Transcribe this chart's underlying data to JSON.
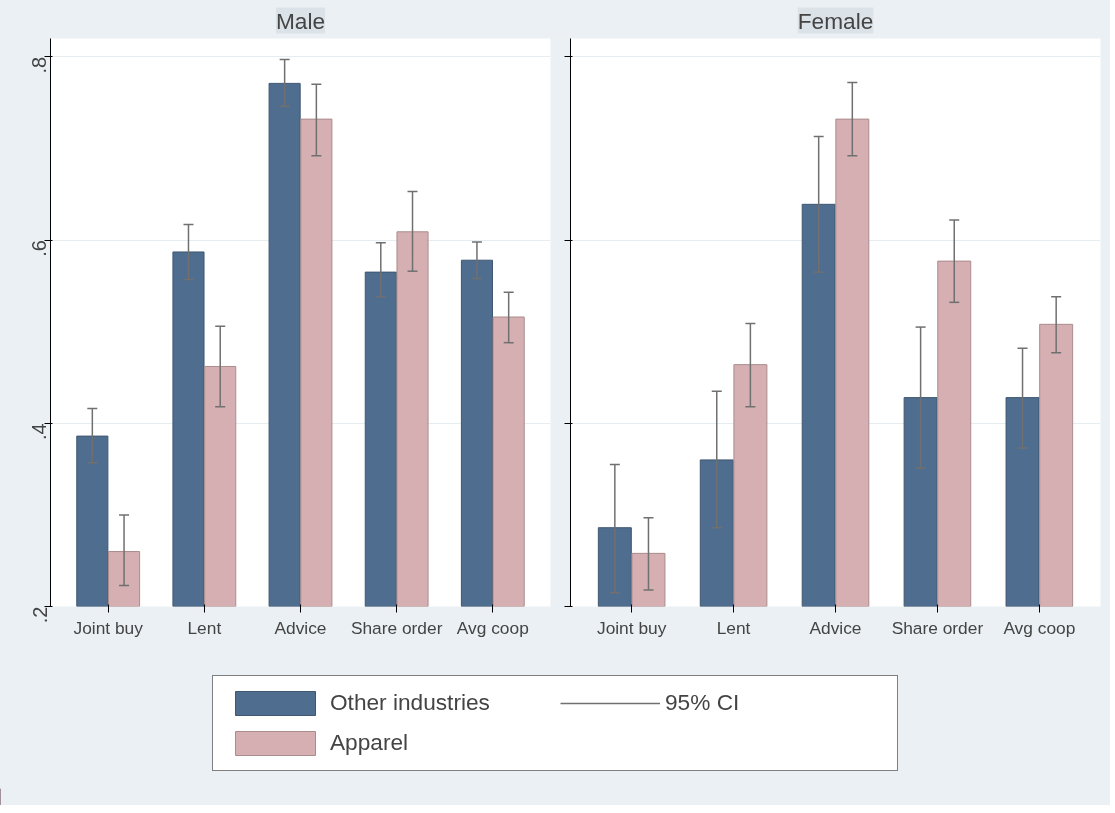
{
  "chart_data": [
    {
      "type": "bar",
      "title": "Male",
      "categories": [
        "Joint buy",
        "Lent",
        "Advice",
        "Share order",
        "Avg coop"
      ],
      "ylim": [
        0.2,
        0.82
      ],
      "yticks": [
        {
          "value": 0.2,
          "label": ".2"
        },
        {
          "value": 0.4,
          "label": ".4"
        },
        {
          "value": 0.6,
          "label": ".6"
        },
        {
          "value": 0.8,
          "label": ".8"
        }
      ],
      "grid": "y",
      "legend": "bottom",
      "annotations": [
        "95% CI"
      ],
      "series": [
        {
          "name": "Other industries",
          "color": "#4f6d8e",
          "values": [
            0.386,
            0.587,
            0.771,
            0.565,
            0.578
          ],
          "errors": [
            [
              0.357,
              0.416
            ],
            [
              0.557,
              0.617
            ],
            [
              0.746,
              0.797
            ],
            [
              0.538,
              0.597
            ],
            [
              0.558,
              0.598
            ]
          ]
        },
        {
          "name": "Apparel",
          "color": "#d5afb1",
          "values": [
            0.26,
            0.462,
            0.732,
            0.609,
            0.516
          ],
          "errors": [
            [
              0.223,
              0.3
            ],
            [
              0.418,
              0.506
            ],
            [
              0.692,
              0.77
            ],
            [
              0.566,
              0.653
            ],
            [
              0.488,
              0.543
            ]
          ]
        }
      ]
    },
    {
      "type": "bar",
      "title": "Female",
      "categories": [
        "Joint buy",
        "Lent",
        "Advice",
        "Share order",
        "Avg coop"
      ],
      "ylim": [
        0.2,
        0.82
      ],
      "yticks": [
        0.2,
        0.4,
        0.6,
        0.8
      ],
      "grid": "y",
      "tick_labels": "x",
      "series": [
        {
          "color": "#4f6d8e",
          "values": [
            0.286,
            0.36,
            0.639,
            0.428,
            0.428
          ],
          "errors": [
            [
              0.215,
              0.355
            ],
            [
              0.286,
              0.435
            ],
            [
              0.565,
              0.713
            ],
            [
              0.351,
              0.505
            ],
            [
              0.373,
              0.482
            ]
          ]
        },
        {
          "color": "#d5afb1",
          "values": [
            0.258,
            0.464,
            0.732,
            0.577,
            0.508
          ],
          "errors": [
            [
              0.218,
              0.297
            ],
            [
              0.418,
              0.509
            ],
            [
              0.692,
              0.772
            ],
            [
              0.532,
              0.622
            ],
            [
              0.477,
              0.538
            ]
          ]
        }
      ]
    }
  ]
}
